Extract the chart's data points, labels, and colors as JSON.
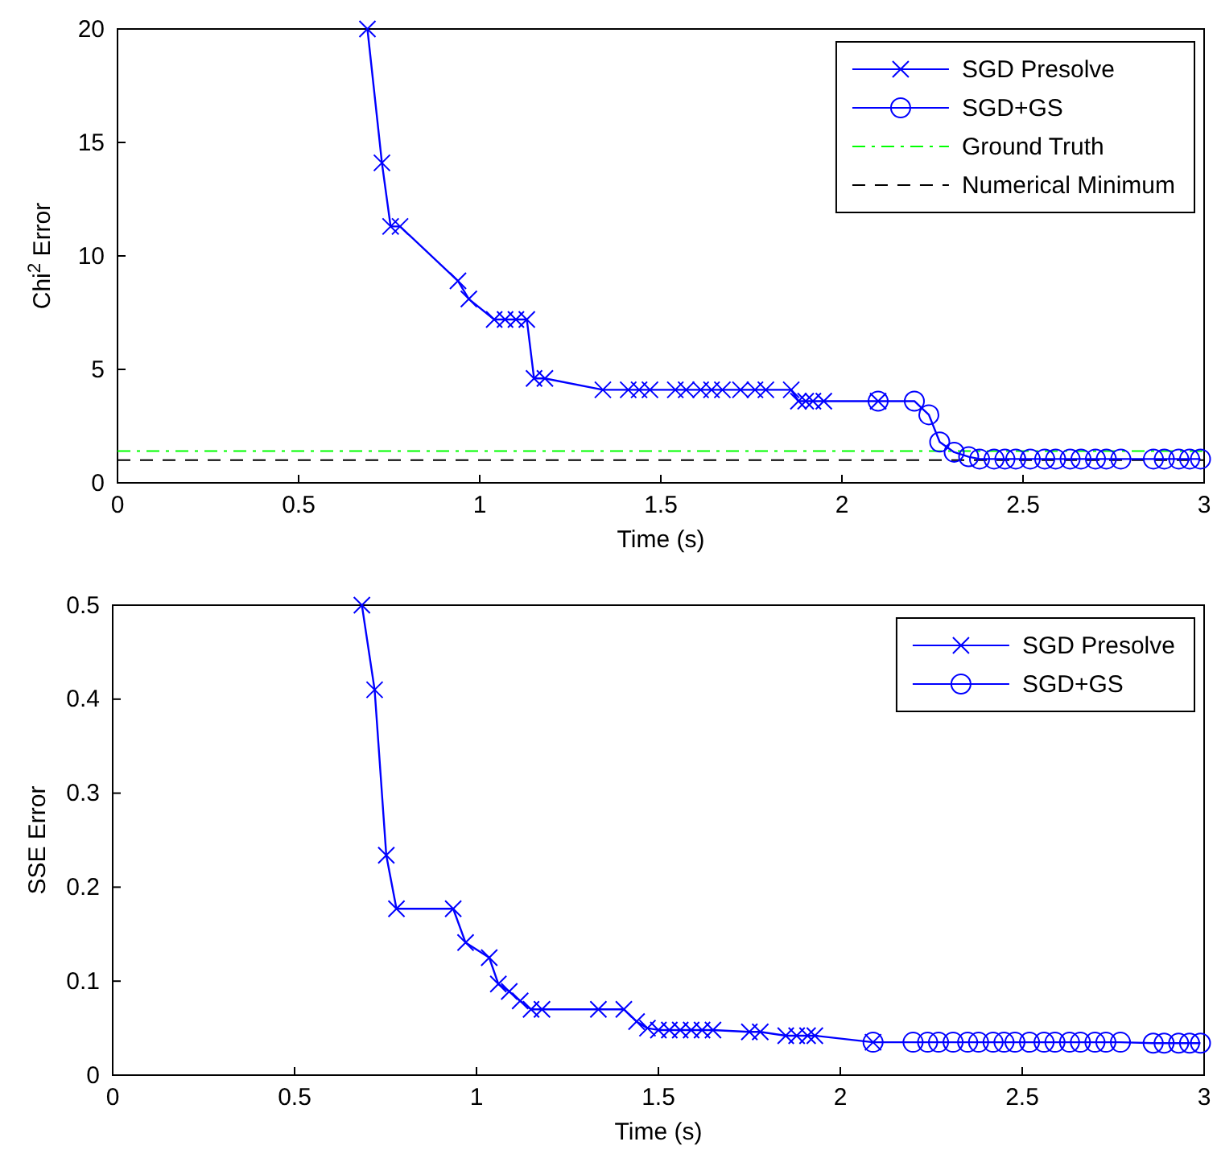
{
  "chart_data": [
    {
      "type": "line",
      "xlabel": "Time (s)",
      "ylabel": "Chi$^{2}$ Error",
      "xlim": [
        0,
        3
      ],
      "ylim": [
        0,
        20
      ],
      "xticks": [
        0,
        0.5,
        1,
        1.5,
        2,
        2.5,
        3
      ],
      "yticks": [
        0,
        5,
        10,
        15,
        20
      ],
      "legend": "top right",
      "grid": false,
      "series": [
        {
          "name": "SGD Presolve",
          "color": "#0000ff",
          "marker": "cross",
          "x": [
            0.69,
            0.73,
            0.754,
            0.78,
            0.94,
            0.97,
            1.04,
            1.07,
            1.1,
            1.13,
            1.15,
            1.18,
            1.34,
            1.41,
            1.44,
            1.47,
            1.54,
            1.57,
            1.61,
            1.64,
            1.67,
            1.72,
            1.76,
            1.79,
            1.86,
            1.88,
            1.9,
            1.92,
            1.95,
            2.1
          ],
          "values": [
            20,
            14.1,
            11.3,
            11.3,
            8.9,
            8.1,
            7.2,
            7.2,
            7.2,
            7.2,
            4.6,
            4.6,
            4.1,
            4.1,
            4.1,
            4.1,
            4.1,
            4.1,
            4.1,
            4.1,
            4.1,
            4.1,
            4.1,
            4.1,
            4.1,
            3.6,
            3.6,
            3.6,
            3.6,
            3.6
          ]
        },
        {
          "name": "SGD+GS",
          "color": "#0000ff",
          "marker": "circle",
          "x": [
            2.1,
            2.2,
            2.24,
            2.27,
            2.31,
            2.35,
            2.38,
            2.42,
            2.45,
            2.48,
            2.52,
            2.56,
            2.59,
            2.63,
            2.66,
            2.7,
            2.73,
            2.77,
            2.86,
            2.89,
            2.93,
            2.96,
            2.99
          ],
          "values": [
            3.6,
            3.6,
            3.0,
            1.8,
            1.35,
            1.15,
            1.05,
            1.05,
            1.05,
            1.05,
            1.05,
            1.05,
            1.05,
            1.05,
            1.05,
            1.05,
            1.05,
            1.05,
            1.05,
            1.05,
            1.05,
            1.05,
            1.05
          ]
        }
      ],
      "ref_lines": [
        {
          "axis": "y",
          "value": 1.4,
          "label": "Ground Truth",
          "color": "#00ff00",
          "line_style": "dashdot"
        },
        {
          "axis": "y",
          "value": 1,
          "label": "Numerical Minimum",
          "color": "#000000",
          "line_style": "dashed"
        }
      ]
    },
    {
      "type": "line",
      "xlabel": "Time (s)",
      "ylabel": "SSE Error",
      "xlim": [
        0,
        3
      ],
      "ylim": [
        0,
        0.5
      ],
      "xticks": [
        0,
        0.5,
        1,
        1.5,
        2,
        2.5,
        3
      ],
      "yticks": [
        0,
        0.1,
        0.2,
        0.3,
        0.4,
        0.5
      ],
      "legend": "top right",
      "grid": false,
      "series": [
        {
          "name": "SGD Presolve",
          "color": "#0000ff",
          "marker": "cross",
          "x": [
            0.685,
            0.72,
            0.752,
            0.78,
            0.936,
            0.97,
            1.035,
            1.06,
            1.09,
            1.12,
            1.15,
            1.18,
            1.335,
            1.405,
            1.44,
            1.47,
            1.5,
            1.53,
            1.56,
            1.59,
            1.62,
            1.65,
            1.75,
            1.78,
            1.85,
            1.88,
            1.91,
            1.93,
            2.09
          ],
          "values": [
            0.5,
            0.41,
            0.234,
            0.177,
            0.177,
            0.141,
            0.125,
            0.097,
            0.089,
            0.079,
            0.07,
            0.07,
            0.07,
            0.07,
            0.057,
            0.05,
            0.048,
            0.048,
            0.048,
            0.048,
            0.048,
            0.048,
            0.046,
            0.046,
            0.042,
            0.042,
            0.042,
            0.042,
            0.035
          ]
        },
        {
          "name": "SGD+GS",
          "color": "#0000ff",
          "marker": "circle",
          "x": [
            2.09,
            2.2,
            2.24,
            2.27,
            2.31,
            2.35,
            2.38,
            2.42,
            2.45,
            2.48,
            2.52,
            2.56,
            2.59,
            2.63,
            2.66,
            2.7,
            2.73,
            2.77,
            2.86,
            2.89,
            2.93,
            2.96,
            2.99
          ],
          "values": [
            0.035,
            0.035,
            0.035,
            0.035,
            0.035,
            0.035,
            0.035,
            0.035,
            0.035,
            0.035,
            0.035,
            0.035,
            0.035,
            0.035,
            0.035,
            0.035,
            0.035,
            0.035,
            0.034,
            0.034,
            0.034,
            0.034,
            0.034
          ]
        }
      ]
    }
  ]
}
